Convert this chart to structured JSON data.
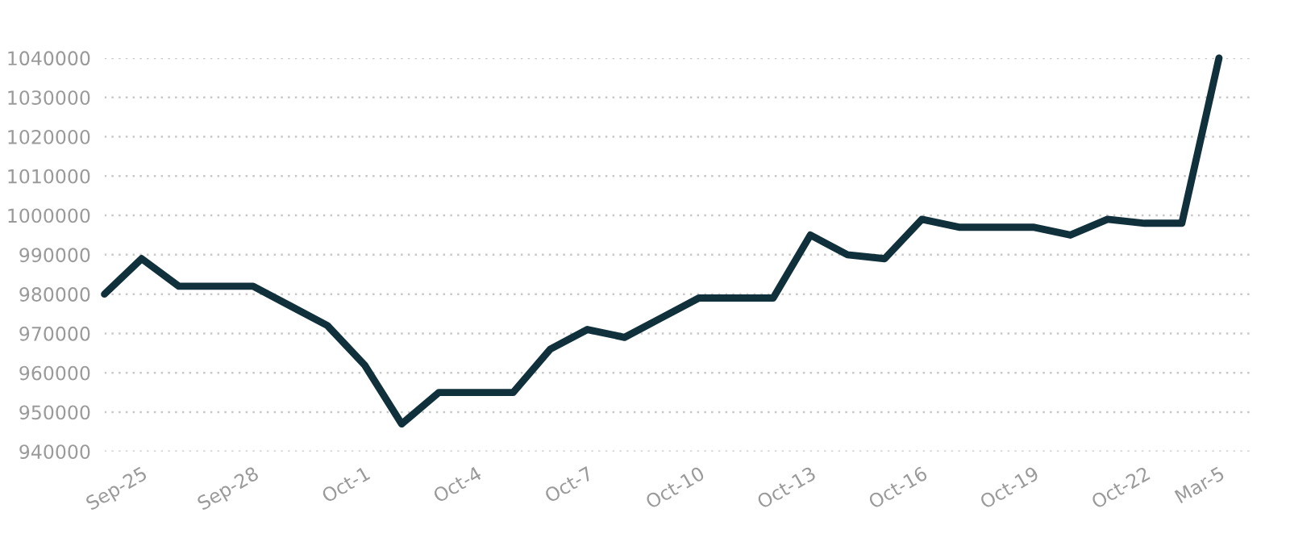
{
  "chart_data": {
    "type": "line",
    "categories": [
      null,
      "Sep-25",
      null,
      null,
      "Sep-28",
      null,
      null,
      "Oct-1",
      null,
      null,
      "Oct-4",
      null,
      null,
      "Oct-7",
      null,
      null,
      "Oct-10",
      null,
      null,
      "Oct-13",
      null,
      null,
      "Oct-16",
      null,
      null,
      "Oct-19",
      null,
      null,
      "Oct-22",
      null,
      "Mar-5"
    ],
    "series": [
      {
        "color": "#10303c",
        "values": [
          980000,
          989000,
          982000,
          982000,
          982000,
          977000,
          972000,
          962000,
          947000,
          955000,
          955000,
          955000,
          966000,
          971000,
          969000,
          974000,
          979000,
          979000,
          979000,
          995000,
          990000,
          989000,
          999000,
          997000,
          997000,
          997000,
          995000,
          999000,
          998000,
          998000,
          1040000
        ]
      }
    ],
    "ylim": [
      940000,
      1040000
    ],
    "yticks": [
      940000,
      950000,
      960000,
      970000,
      980000,
      990000,
      1000000,
      1010000,
      1020000,
      1030000,
      1040000
    ],
    "grid": "y",
    "legend": false,
    "marker": "none",
    "line_style": "solid"
  }
}
